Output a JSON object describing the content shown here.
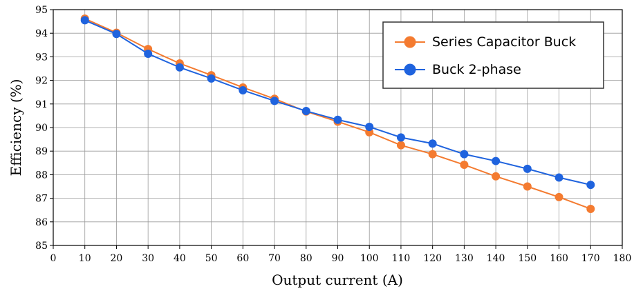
{
  "chart_data": {
    "type": "line",
    "title": "",
    "xlabel": "Output current (A)",
    "ylabel": "Efficiency (%)",
    "xlim": [
      0,
      180
    ],
    "ylim": [
      85,
      95
    ],
    "xticks": [
      0,
      10,
      20,
      30,
      40,
      50,
      60,
      70,
      80,
      90,
      100,
      110,
      120,
      130,
      140,
      150,
      160,
      170,
      180
    ],
    "yticks": [
      85,
      86,
      87,
      88,
      89,
      90,
      91,
      92,
      93,
      94,
      95
    ],
    "grid": true,
    "legend_position": "top-right",
    "x": [
      10,
      20,
      30,
      40,
      50,
      60,
      70,
      80,
      90,
      100,
      110,
      120,
      130,
      140,
      150,
      160,
      170
    ],
    "series": [
      {
        "name": "Series Capacitor Buck",
        "color": "#F47B30",
        "values": [
          94.62,
          94.02,
          93.33,
          92.72,
          92.22,
          91.7,
          91.22,
          90.68,
          90.25,
          89.8,
          89.25,
          88.87,
          88.42,
          87.93,
          87.5,
          87.05,
          86.55
        ]
      },
      {
        "name": "Buck 2-phase",
        "color": "#1F63DE",
        "values": [
          94.55,
          93.97,
          93.13,
          92.55,
          92.08,
          91.58,
          91.13,
          90.7,
          90.33,
          90.03,
          89.58,
          89.32,
          88.87,
          88.58,
          88.25,
          87.88,
          87.57
        ]
      }
    ]
  }
}
